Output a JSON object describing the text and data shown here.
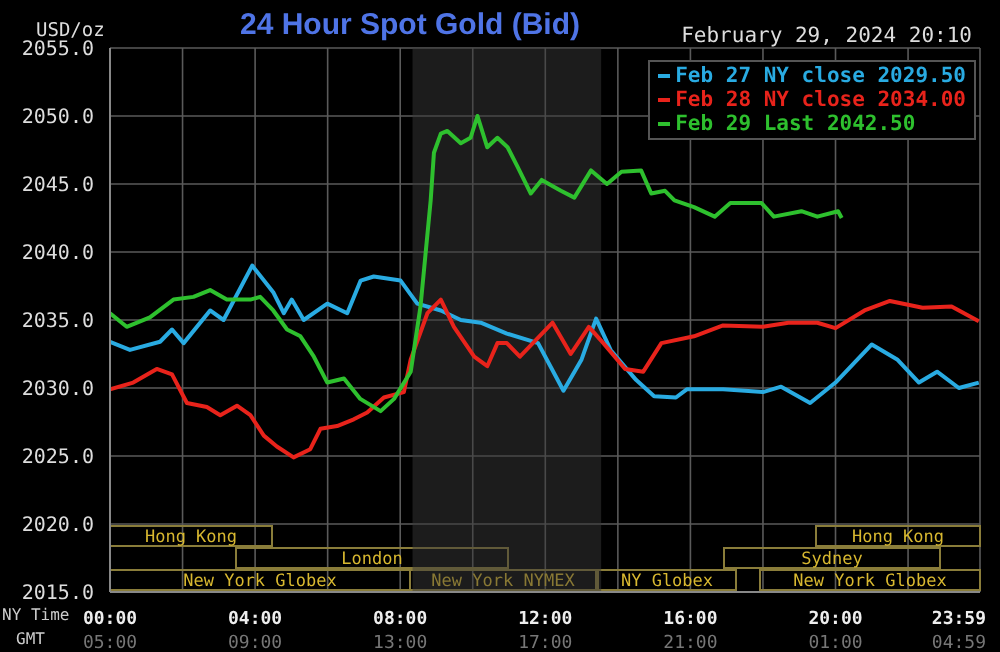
{
  "chart_data": {
    "type": "line",
    "title": "24 Hour Spot Gold (Bid)",
    "subtitle": "February 29, 2024 20:10",
    "ylabel": "USD/oz",
    "xlabel": "NY Time",
    "xlim": [
      0,
      23.983
    ],
    "ylim": [
      2015,
      2055
    ],
    "xticks": [
      {
        "value": 0,
        "label": "00:00"
      },
      {
        "value": 2,
        "label": null
      },
      {
        "value": 4,
        "label": "04:00"
      },
      {
        "value": 6,
        "label": null
      },
      {
        "value": 8,
        "label": "08:00"
      },
      {
        "value": 10,
        "label": null
      },
      {
        "value": 12,
        "label": "12:00"
      },
      {
        "value": 14,
        "label": null
      },
      {
        "value": 16,
        "label": "16:00"
      },
      {
        "value": 18,
        "label": null
      },
      {
        "value": 20,
        "label": "20:00"
      },
      {
        "value": 22,
        "label": null
      },
      {
        "value": 23.983,
        "label": "23:59"
      }
    ],
    "yticks": [
      {
        "value": 2015,
        "label": "2015.0"
      },
      {
        "value": 2020,
        "label": "2020.0"
      },
      {
        "value": 2025,
        "label": "2025.0"
      },
      {
        "value": 2030,
        "label": "2030.0"
      },
      {
        "value": 2035,
        "label": "2035.0"
      },
      {
        "value": 2040,
        "label": "2040.0"
      },
      {
        "value": 2045,
        "label": "2045.0"
      },
      {
        "value": 2050,
        "label": "2050.0"
      },
      {
        "value": 2055,
        "label": "2055.0"
      }
    ],
    "grid": true,
    "legend": "top right",
    "marker": "none",
    "line_style": "solid",
    "bands": [
      {
        "axis": "x",
        "from": 8.34,
        "to": 13.54,
        "color": "#383838"
      }
    ],
    "annotations": [
      "Hong Kong",
      "Hong Kong",
      "London",
      "Sydney",
      "New York Globex",
      "New York NYMEX",
      "NY Globex",
      "New York Globex",
      "GMT",
      "05:00",
      "09:00",
      "13:00",
      "17:00",
      "21:00",
      "01:00",
      "04:59"
    ],
    "series": [
      {
        "name": "Feb 27 NY close 2029.50",
        "color": "#29abe2",
        "x": [
          0,
          0.55,
          1.38,
          1.71,
          2.03,
          2.76,
          3.13,
          3.92,
          4.51,
          4.79,
          5.01,
          5.34,
          5.99,
          6.54,
          6.91,
          7.27,
          8.01,
          8.47,
          9.12,
          9.67,
          10.22,
          10.94,
          11.8,
          12.5,
          13.0,
          13.4,
          13.8,
          14.5,
          15.0,
          15.6,
          15.9,
          16.9,
          18.0,
          18.5,
          19.3,
          20.0,
          21.0,
          21.7,
          22.3,
          22.8,
          23.4,
          23.95
        ],
        "values": [
          2033.4,
          2032.8,
          2033.4,
          2034.3,
          2033.3,
          2035.7,
          2035,
          2039,
          2037,
          2035.5,
          2036.5,
          2035,
          2036.2,
          2035.5,
          2037.9,
          2038.2,
          2037.9,
          2036.2,
          2035.7,
          2035,
          2034.8,
          2034,
          2033.3,
          2029.8,
          2032.1,
          2035.1,
          2032.8,
          2030.6,
          2029.4,
          2029.3,
          2029.9,
          2029.9,
          2029.7,
          2030.1,
          2028.9,
          2030.4,
          2033.2,
          2032.1,
          2030.4,
          2031.2,
          2030,
          2030.4
        ]
      },
      {
        "name": "Feb 28 NY close 2034.00",
        "color": "#e8231b",
        "x": [
          0,
          0.64,
          1.29,
          1.71,
          2.12,
          2.67,
          3.04,
          3.5,
          3.87,
          4.24,
          4.6,
          5.06,
          5.52,
          5.8,
          6.26,
          6.72,
          7.09,
          7.55,
          8.1,
          8.29,
          8.75,
          9.12,
          9.48,
          10.04,
          10.4,
          10.68,
          10.94,
          11.3,
          12.2,
          12.7,
          13.2,
          13.6,
          14.2,
          14.7,
          15.2,
          16.1,
          16.9,
          18.0,
          18.7,
          19.5,
          20.0,
          20.8,
          21.5,
          22.4,
          23.2,
          23.95
        ],
        "values": [
          2029.9,
          2030.4,
          2031.4,
          2031,
          2028.9,
          2028.6,
          2028,
          2028.7,
          2028,
          2026.5,
          2025.7,
          2024.9,
          2025.5,
          2027,
          2027.2,
          2027.7,
          2028.2,
          2029.3,
          2029.7,
          2032.1,
          2035.5,
          2036.5,
          2034.5,
          2032.3,
          2031.6,
          2033.3,
          2033.3,
          2032.3,
          2034.8,
          2032.5,
          2034.5,
          2033.3,
          2031.4,
          2031.2,
          2033.3,
          2033.8,
          2034.6,
          2034.5,
          2034.8,
          2034.8,
          2034.4,
          2035.7,
          2036.4,
          2035.9,
          2036,
          2034.9
        ]
      },
      {
        "name": "Feb 29 Last 2042.50",
        "color": "#2ec02e",
        "x": [
          0,
          0.46,
          1.1,
          1.75,
          2.3,
          2.76,
          3.22,
          3.87,
          4.14,
          4.5,
          4.88,
          5.25,
          5.62,
          5.99,
          6.45,
          6.9,
          7.46,
          7.83,
          8.29,
          8.56,
          8.84,
          8.93,
          9.12,
          9.3,
          9.67,
          9.94,
          10.13,
          10.4,
          10.68,
          10.96,
          11.23,
          11.6,
          11.9,
          12.43,
          12.8,
          13.26,
          13.7,
          14.1,
          14.64,
          14.92,
          15.3,
          15.56,
          16.1,
          16.67,
          17.1,
          17.96,
          18.3,
          19.06,
          19.5,
          20.07,
          20.17
        ],
        "values": [
          2035.5,
          2034.5,
          2035.2,
          2036.5,
          2036.7,
          2037.2,
          2036.5,
          2036.5,
          2036.7,
          2035.7,
          2034.3,
          2033.8,
          2032.3,
          2030.4,
          2030.7,
          2029.2,
          2028.3,
          2029.2,
          2031.2,
          2036,
          2043.8,
          2047.3,
          2048.7,
          2048.9,
          2048,
          2048.4,
          2050,
          2047.7,
          2048.4,
          2047.7,
          2046.3,
          2044.3,
          2045.3,
          2044.5,
          2044,
          2046,
          2045,
          2045.9,
          2046,
          2044.3,
          2044.5,
          2043.8,
          2043.3,
          2042.6,
          2043.6,
          2043.6,
          2042.6,
          2043,
          2042.6,
          2043,
          2042.5
        ]
      }
    ]
  }
}
